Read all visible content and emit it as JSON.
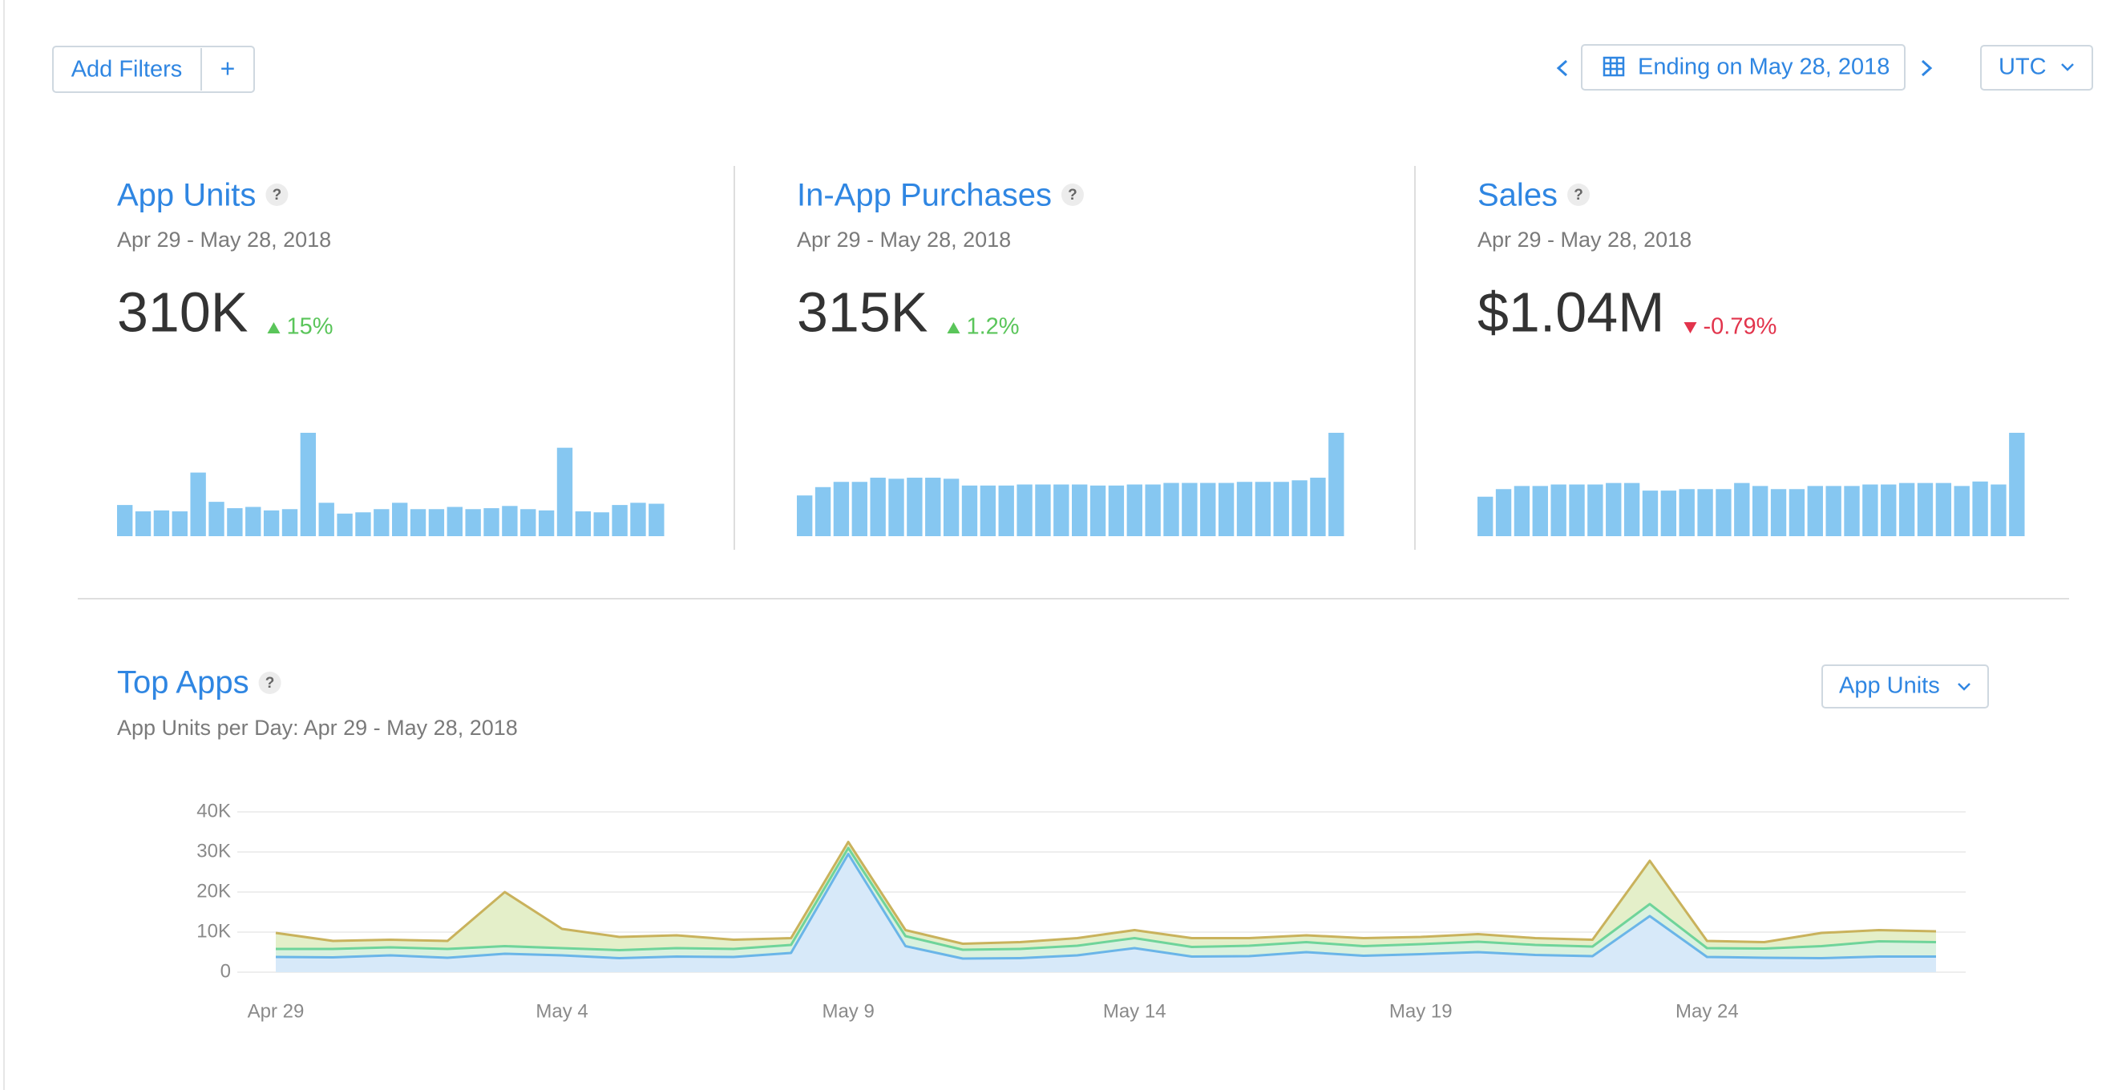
{
  "header": {
    "add_filters": "Add Filters",
    "add_icon": "+",
    "date_range": "Ending on May 28, 2018",
    "timezone": "UTC"
  },
  "help_icon": "?",
  "cards": [
    {
      "title": "App Units",
      "period": "Apr 29 - May 28, 2018",
      "value": "310K",
      "change": "15%",
      "change_direction": "up",
      "change_color": "#5ac55a",
      "bars": {
        "color": "#86c7f1",
        "values": [
          9800,
          7800,
          8100,
          7800,
          20000,
          10800,
          8800,
          9200,
          8100,
          8500,
          32500,
          10500,
          7100,
          7500,
          8500,
          10500,
          8500,
          8500,
          9200,
          8500,
          8800,
          9500,
          8500,
          8100,
          27800,
          7800,
          7500,
          9800,
          10500,
          10200
        ]
      }
    },
    {
      "title": "In-App Purchases",
      "period": "Apr 29 - May 28, 2018",
      "value": "315K",
      "change": "1.2%",
      "change_direction": "up",
      "change_color": "#5ac55a",
      "bars": {
        "color": "#86c7f1",
        "values": [
          7800,
          9400,
          10400,
          10400,
          11200,
          11000,
          11200,
          11200,
          11000,
          9700,
          9700,
          9700,
          9900,
          9900,
          9900,
          9900,
          9700,
          9700,
          9900,
          9900,
          10200,
          10200,
          10200,
          10200,
          10400,
          10400,
          10400,
          10700,
          11200,
          19800
        ]
      }
    },
    {
      "title": "Sales",
      "period": "Apr 29 - May 28, 2018",
      "value": "$1.04M",
      "change": "-0.79%",
      "change_direction": "down",
      "change_color": "#e2344c",
      "bars": {
        "color": "#86c7f1",
        "values": [
          26500,
          31600,
          33700,
          33700,
          34700,
          34700,
          34700,
          35700,
          35700,
          30600,
          30600,
          31600,
          31600,
          31600,
          35700,
          33700,
          31600,
          31600,
          33700,
          33700,
          33700,
          34700,
          34700,
          35700,
          35700,
          35700,
          33700,
          36700,
          34700,
          69400
        ]
      }
    }
  ],
  "chart_data": {
    "type": "area",
    "stacked": true,
    "title": "Top Apps",
    "subtitle": "App Units per Day: Apr 29 - May 28, 2018",
    "metric_selector": "App Units",
    "categories": [
      "Apr 29",
      null,
      null,
      null,
      null,
      "May 4",
      null,
      null,
      null,
      null,
      "May 9",
      null,
      null,
      null,
      null,
      "May 14",
      null,
      null,
      null,
      null,
      "May 19",
      null,
      null,
      null,
      null,
      "May 24",
      null,
      null,
      null,
      null
    ],
    "series": [
      {
        "color": "#6ab5e8",
        "fill": "#d7e9f9",
        "values": [
          3800,
          3700,
          4200,
          3600,
          4600,
          4200,
          3500,
          3900,
          3800,
          4800,
          29500,
          6500,
          3400,
          3500,
          4200,
          6000,
          3900,
          4000,
          5000,
          4100,
          4500,
          5000,
          4300,
          4000,
          14000,
          3800,
          3600,
          3500,
          3900,
          3900
        ]
      },
      {
        "color": "#6fd49a",
        "fill": "#d9f1df",
        "values": [
          2000,
          2100,
          2000,
          2200,
          1900,
          1800,
          2000,
          2100,
          2000,
          2000,
          1500,
          2500,
          2200,
          2300,
          2400,
          2500,
          2400,
          2600,
          2500,
          2400,
          2500,
          2600,
          2500,
          2400,
          3000,
          2200,
          2300,
          3000,
          3800,
          3600
        ]
      },
      {
        "color": "#c9b25c",
        "fill": "#e4efc9",
        "values": [
          4000,
          2000,
          1900,
          2000,
          13500,
          4800,
          3300,
          3200,
          2300,
          1700,
          1500,
          1500,
          1500,
          1700,
          1900,
          2000,
          2200,
          1900,
          1700,
          2000,
          1800,
          1900,
          1700,
          1700,
          10800,
          1800,
          1600,
          3300,
          2800,
          2700
        ]
      }
    ],
    "ylim": [
      0,
      40000
    ],
    "yticks": [
      0,
      {
        "value": 10000,
        "label": "10K"
      },
      {
        "value": 20000,
        "label": "20K"
      },
      {
        "value": 30000,
        "label": "30K"
      },
      {
        "value": 40000,
        "label": "40K"
      }
    ],
    "grid": true
  }
}
